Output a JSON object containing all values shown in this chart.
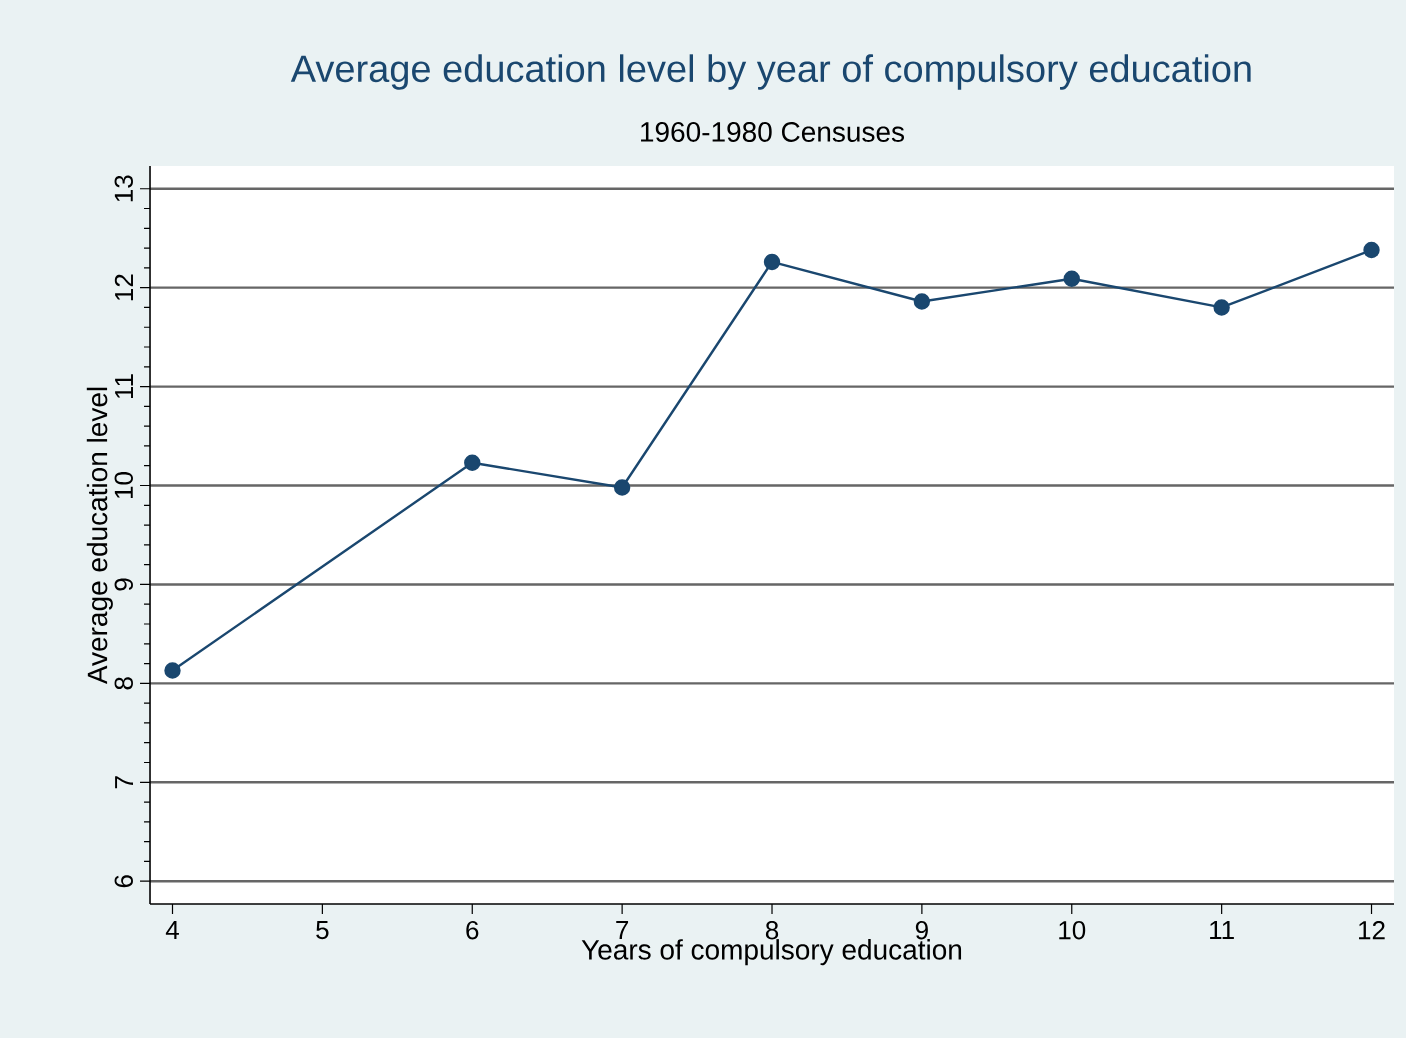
{
  "chart_data": {
    "type": "line",
    "title": "Average education level by year of compulsory education",
    "subtitle": "1960-1980 Censuses",
    "xlabel": "Years of compulsory education",
    "ylabel": "Average education level",
    "x": [
      4,
      6,
      7,
      8,
      9,
      10,
      11,
      12
    ],
    "series": [
      {
        "color": "#1a476f",
        "values": [
          8.13,
          10.23,
          9.98,
          12.26,
          11.86,
          12.09,
          11.8,
          12.38
        ]
      }
    ],
    "xlim": [
      3.85,
      12.15
    ],
    "ylim": [
      5.77,
      13.23
    ],
    "xticks": [
      4,
      5,
      6,
      7,
      8,
      9,
      10,
      11,
      12
    ],
    "yticks": [
      6,
      7,
      8,
      9,
      10,
      11,
      12,
      13
    ],
    "grid": "y",
    "marker": "circle",
    "line_style": "solid"
  }
}
